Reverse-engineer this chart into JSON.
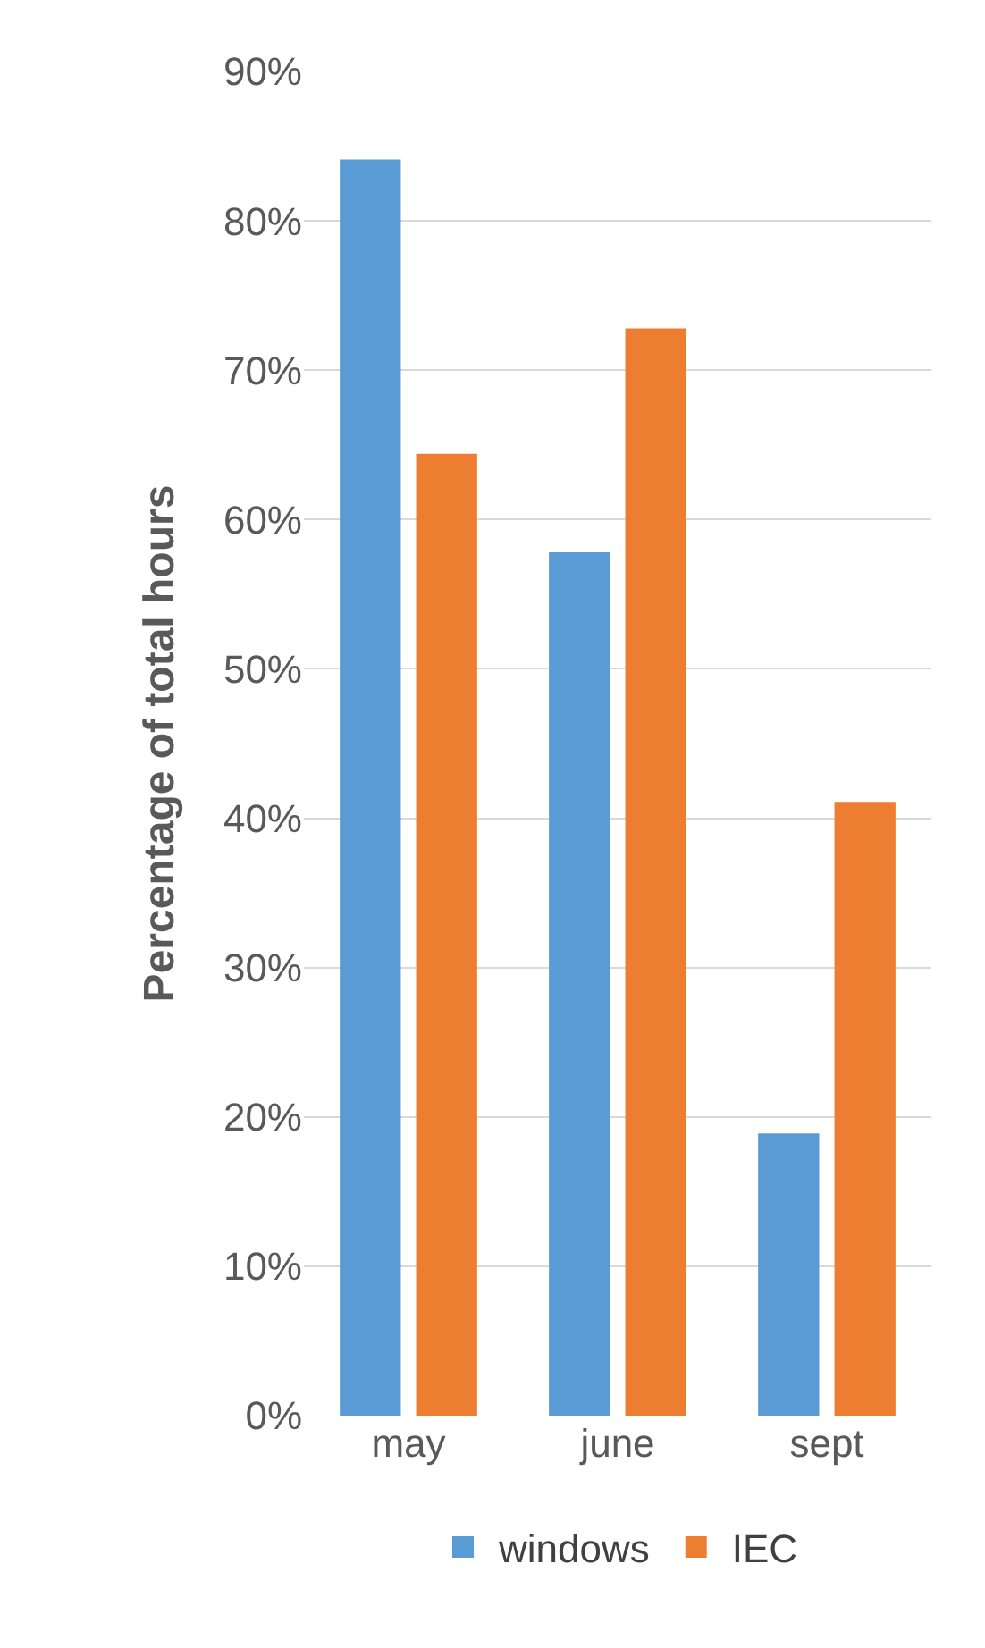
{
  "chart_data": {
    "type": "bar",
    "ylabel": "Percentage of total hours",
    "categories": [
      "may",
      "june",
      "sept"
    ],
    "series": [
      {
        "name": "windows",
        "color": "#5b9bd5",
        "values": [
          84.1,
          57.8,
          18.9
        ]
      },
      {
        "name": "IEC",
        "color": "#ed7d31",
        "values": [
          64.4,
          72.8,
          41.1
        ]
      }
    ],
    "ylim": [
      0,
      90
    ],
    "yticks": [
      {
        "value": 0,
        "label": "0%"
      },
      {
        "value": 10,
        "label": "10%"
      },
      {
        "value": 20,
        "label": "20%"
      },
      {
        "value": 30,
        "label": "30%"
      },
      {
        "value": 40,
        "label": "40%"
      },
      {
        "value": 50,
        "label": "50%"
      },
      {
        "value": 60,
        "label": "60%"
      },
      {
        "value": 70,
        "label": "70%"
      },
      {
        "value": 80,
        "label": "80%"
      },
      {
        "value": 90,
        "label": "90%"
      }
    ],
    "grid": "y",
    "legend": "bottom"
  }
}
